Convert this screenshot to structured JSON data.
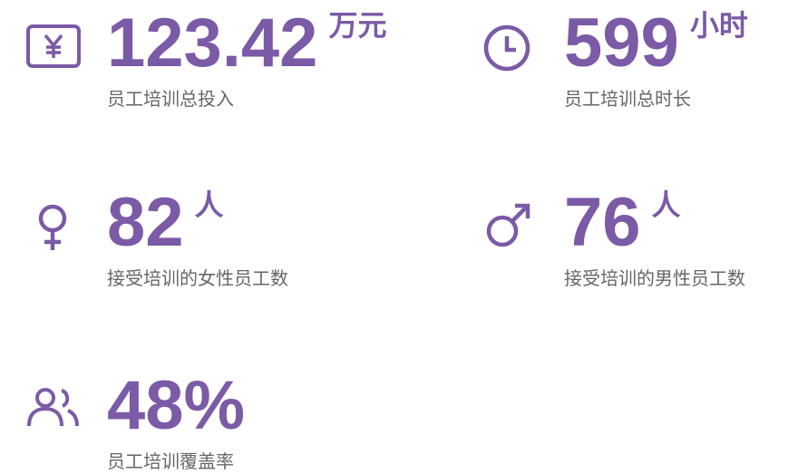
{
  "stats": [
    {
      "value": "123.42",
      "unit": "万元",
      "label": "员工培训总投入"
    },
    {
      "value": "599",
      "unit": "小时",
      "label": "员工培训总时长"
    },
    {
      "value": "82",
      "unit": "人",
      "label": "接受培训的女性员工数"
    },
    {
      "value": "76",
      "unit": "人",
      "label": "接受培训的男性员工数"
    },
    {
      "value": "48%",
      "label": "员工培训覆盖率"
    }
  ]
}
